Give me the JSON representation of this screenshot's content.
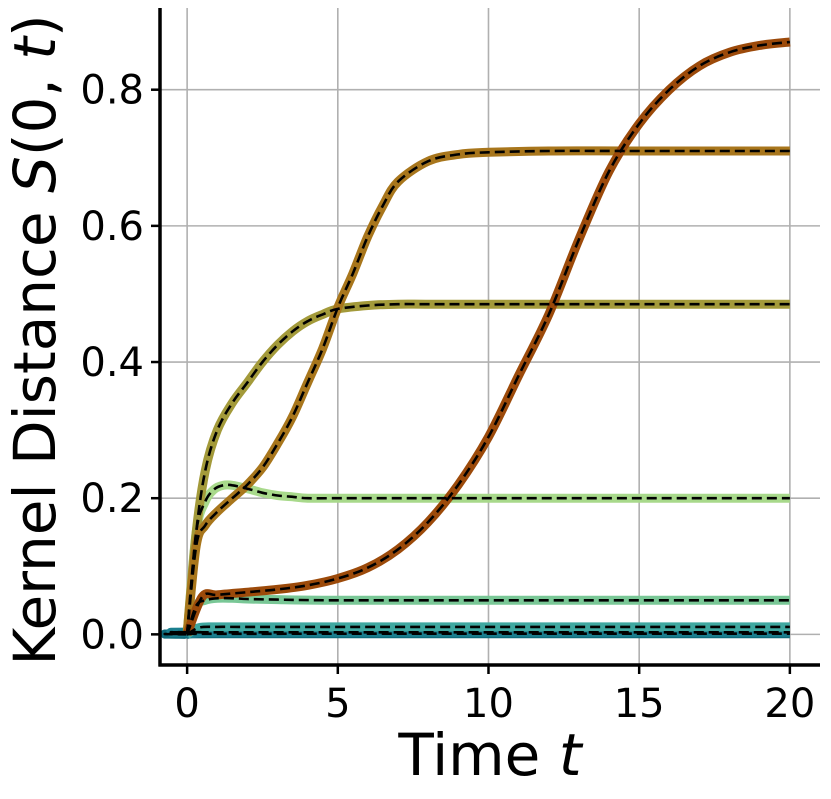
{
  "chart_data": {
    "type": "line",
    "title": "",
    "xlabel": "Time t",
    "xlabel_parts": {
      "text": "Time ",
      "var": "t"
    },
    "ylabel": "Kernel Distance S(0, t)",
    "ylabel_parts": {
      "text": "Kernel Distance ",
      "func": "S",
      "open": "(0, ",
      "var": "t",
      "close": ")"
    },
    "xlim": [
      -0.9,
      21
    ],
    "ylim": [
      -0.045,
      0.92
    ],
    "xticks": [
      0,
      5,
      10,
      15,
      20
    ],
    "yticks": [
      0.0,
      0.2,
      0.4,
      0.6,
      0.8
    ],
    "xtick_labels": [
      "0",
      "5",
      "10",
      "15",
      "20"
    ],
    "ytick_labels": [
      "0.0",
      "0.2",
      "0.4",
      "0.6",
      "0.8"
    ],
    "grid": true,
    "overlay_style": "black dashed line on each series",
    "series": [
      {
        "color": "#9c4a0a",
        "x": [
          0,
          0.5,
          1,
          2,
          3,
          4,
          5,
          6,
          7,
          8,
          9,
          10,
          11,
          12,
          13,
          14,
          15,
          16,
          17,
          18,
          19,
          20
        ],
        "y": [
          0,
          0.055,
          0.058,
          0.062,
          0.066,
          0.072,
          0.082,
          0.098,
          0.125,
          0.165,
          0.22,
          0.29,
          0.38,
          0.47,
          0.58,
          0.68,
          0.75,
          0.8,
          0.835,
          0.855,
          0.865,
          0.87
        ]
      },
      {
        "color": "#a8761c",
        "x": [
          0,
          0.3,
          0.6,
          1,
          1.5,
          2,
          2.5,
          3,
          3.5,
          4,
          4.5,
          5,
          5.5,
          6,
          6.5,
          7,
          8,
          9,
          10,
          12,
          15,
          20
        ],
        "y": [
          0,
          0.13,
          0.16,
          0.18,
          0.2,
          0.22,
          0.245,
          0.28,
          0.32,
          0.37,
          0.42,
          0.48,
          0.53,
          0.585,
          0.63,
          0.665,
          0.695,
          0.705,
          0.708,
          0.71,
          0.71,
          0.71
        ]
      },
      {
        "color": "#a39a3a",
        "x": [
          0,
          0.3,
          0.6,
          1,
          1.5,
          2,
          2.5,
          3,
          3.5,
          4,
          4.5,
          5,
          6,
          7,
          8,
          10,
          15,
          20
        ],
        "y": [
          0,
          0.15,
          0.24,
          0.3,
          0.34,
          0.37,
          0.4,
          0.425,
          0.445,
          0.46,
          0.47,
          0.478,
          0.483,
          0.485,
          0.485,
          0.485,
          0.485,
          0.485
        ]
      },
      {
        "color": "#a8d98b",
        "x": [
          0,
          0.3,
          0.6,
          0.9,
          1.2,
          1.5,
          2,
          2.5,
          3,
          3.5,
          4,
          5,
          6,
          10,
          15,
          20
        ],
        "y": [
          0,
          0.15,
          0.195,
          0.213,
          0.219,
          0.219,
          0.214,
          0.208,
          0.204,
          0.202,
          0.2,
          0.2,
          0.2,
          0.2,
          0.2,
          0.2
        ]
      },
      {
        "color": "#79c796",
        "x": [
          0,
          0.3,
          0.6,
          1,
          1.5,
          2,
          3,
          5,
          10,
          20
        ],
        "y": [
          0,
          0.042,
          0.05,
          0.053,
          0.053,
          0.052,
          0.051,
          0.05,
          0.05,
          0.05
        ]
      },
      {
        "color": "#3fa8a0",
        "x": [
          0,
          0.4,
          1,
          2,
          5,
          10,
          20
        ],
        "y": [
          0,
          0.01,
          0.011,
          0.011,
          0.011,
          0.011,
          0.011
        ]
      },
      {
        "color": "#1b7f8f",
        "x": [
          0,
          0.5,
          1,
          20
        ],
        "y": [
          0,
          0.003,
          0.003,
          0.003
        ]
      },
      {
        "color": "#0f6a7a",
        "x": [
          0,
          1,
          20
        ],
        "y": [
          0,
          0.0008,
          0.001
        ]
      }
    ]
  }
}
